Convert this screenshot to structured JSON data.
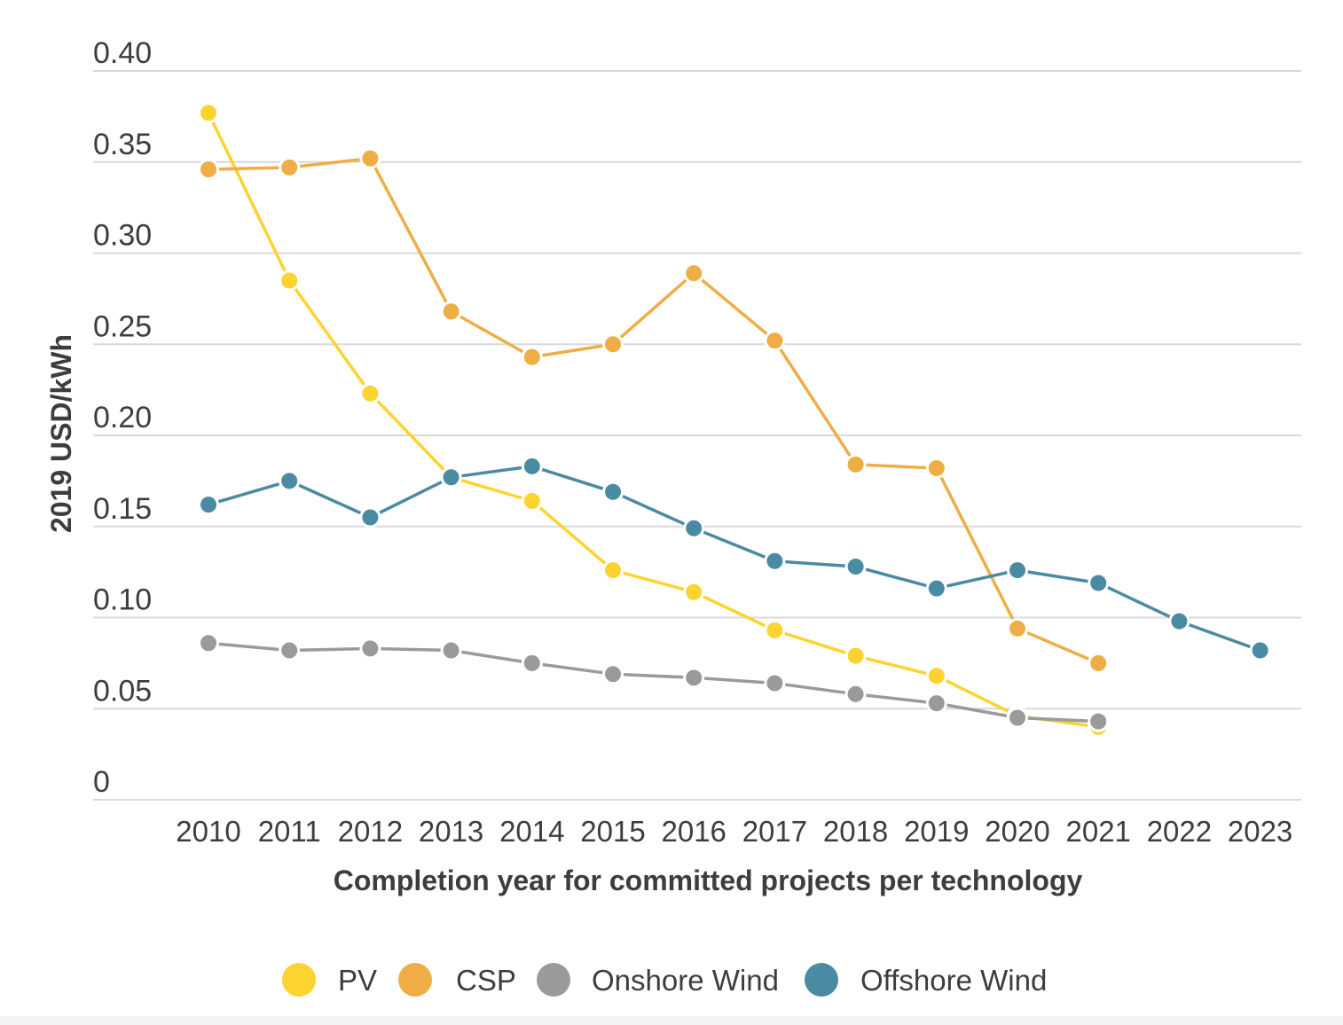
{
  "chart_data": {
    "type": "line",
    "xlabel": "Completion year for committed projects per technology",
    "ylabel": "2019 USD/kWh",
    "ylim": [
      0,
      0.4
    ],
    "yticks": [
      "0",
      "0.05",
      "0.10",
      "0.15",
      "0.20",
      "0.25",
      "0.30",
      "0.35",
      "0.40"
    ],
    "categories": [
      "2010",
      "2011",
      "2012",
      "2013",
      "2014",
      "2015",
      "2016",
      "2017",
      "2018",
      "2019",
      "2020",
      "2021",
      "2022",
      "2023"
    ],
    "grid": true,
    "legend_position": "bottom",
    "series": [
      {
        "name": "PV",
        "color": "#fdd32f",
        "values": [
          0.377,
          0.285,
          0.223,
          0.177,
          0.164,
          0.126,
          0.114,
          0.093,
          0.079,
          0.068,
          0.046,
          0.04,
          null,
          null
        ]
      },
      {
        "name": "CSP",
        "color": "#eeae45",
        "values": [
          0.346,
          0.347,
          0.352,
          0.268,
          0.243,
          0.25,
          0.289,
          0.252,
          0.184,
          0.182,
          0.094,
          0.075,
          null,
          null
        ]
      },
      {
        "name": "Onshore Wind",
        "color": "#9a9a9a",
        "values": [
          0.086,
          0.082,
          0.083,
          0.082,
          0.075,
          0.069,
          0.067,
          0.064,
          0.058,
          0.053,
          0.045,
          0.043,
          null,
          null
        ]
      },
      {
        "name": "Offshore Wind",
        "color": "#4a8ba3",
        "values": [
          0.162,
          0.175,
          0.155,
          0.177,
          0.183,
          0.169,
          0.149,
          0.131,
          0.128,
          0.116,
          0.126,
          0.119,
          0.098,
          0.082
        ]
      }
    ]
  }
}
